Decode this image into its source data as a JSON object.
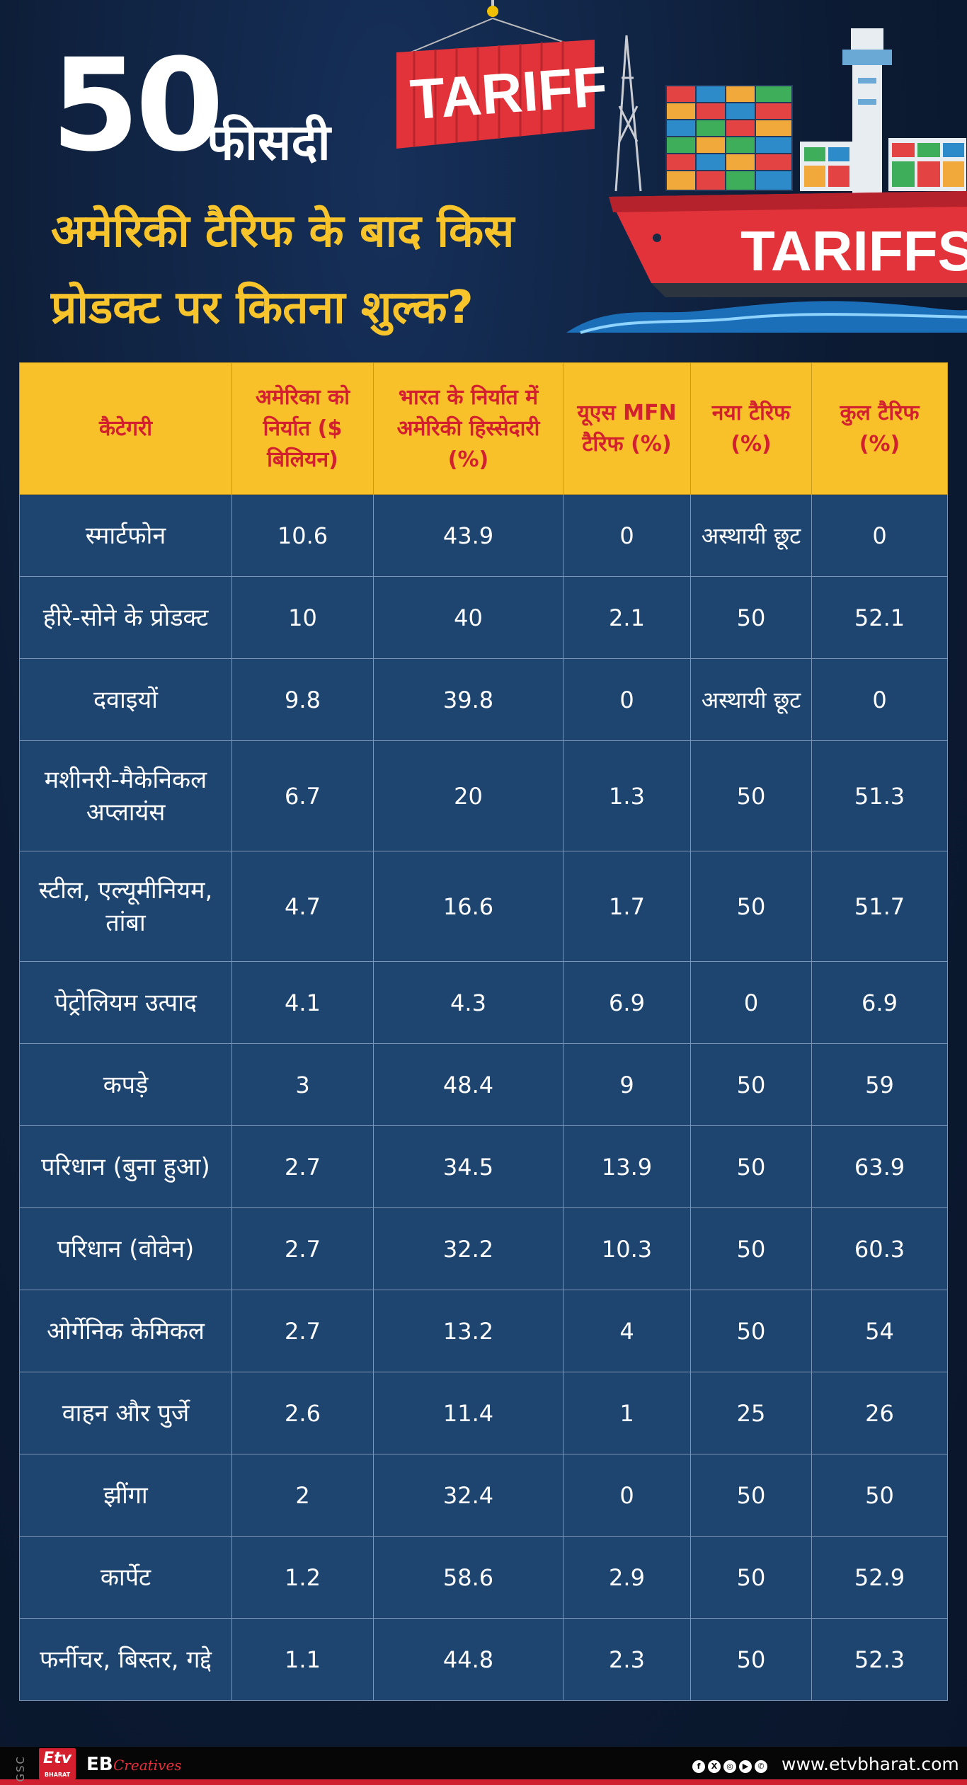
{
  "header": {
    "number": "50",
    "number_suffix": "फीसदी",
    "subtitle_line1": "अमेरिकी टैरिफ के बाद किस",
    "subtitle_line2": "प्रोडक्ट पर कितना शुल्क?",
    "container_label": "TARIFF",
    "ship_label": "TARIFFS"
  },
  "table": {
    "headers": [
      "कैटेगरी",
      "अमेरिका को निर्यात ($ बिलियन)",
      "भारत के निर्यात में अमेरिकी हिस्सेदारी (%)",
      "यूएस MFN टैरिफ (%)",
      "नया टैरिफ (%)",
      "कुल टैरिफ (%)"
    ],
    "rows": [
      [
        "स्मार्टफोन",
        "10.6",
        "43.9",
        "0",
        "अस्थायी छूट",
        "0"
      ],
      [
        "हीरे-सोने के प्रोडक्ट",
        "10",
        "40",
        "2.1",
        "50",
        "52.1"
      ],
      [
        "दवाइयों",
        "9.8",
        "39.8",
        "0",
        "अस्थायी छूट",
        "0"
      ],
      [
        "मशीनरी-मैकेनिकल अप्लायंस",
        "6.7",
        "20",
        "1.3",
        "50",
        "51.3"
      ],
      [
        "स्टील, एल्यूमीनियम, तांबा",
        "4.7",
        "16.6",
        "1.7",
        "50",
        "51.7"
      ],
      [
        "पेट्रोलियम उत्पाद",
        "4.1",
        "4.3",
        "6.9",
        "0",
        "6.9"
      ],
      [
        "कपड़े",
        "3",
        "48.4",
        "9",
        "50",
        "59"
      ],
      [
        "परिधान (बुना हुआ)",
        "2.7",
        "34.5",
        "13.9",
        "50",
        "63.9"
      ],
      [
        "परिधान (वोवेन)",
        "2.7",
        "32.2",
        "10.3",
        "50",
        "60.3"
      ],
      [
        "ओर्गेनिक केमिकल",
        "2.7",
        "13.2",
        "4",
        "50",
        "54"
      ],
      [
        "वाहन और पुर्जे",
        "2.6",
        "11.4",
        "1",
        "25",
        "26"
      ],
      [
        "झींगा",
        "2",
        "32.4",
        "0",
        "50",
        "50"
      ],
      [
        "कार्पेट",
        "1.2",
        "58.6",
        "2.9",
        "50",
        "52.9"
      ],
      [
        "फर्नीचर, बिस्तर, गद्दे",
        "1.1",
        "44.8",
        "2.3",
        "50",
        "52.3"
      ]
    ]
  },
  "footer": {
    "side_text": "GSC",
    "logo_text": "Etv",
    "logo_sub": "BHARAT",
    "eb": "EB",
    "eb_script": "Creatives",
    "social_icons": [
      "facebook-icon",
      "x-icon",
      "instagram-icon",
      "youtube-icon",
      "whatsapp-icon"
    ],
    "website": "www.etvbharat.com"
  },
  "colors": {
    "background": "#0c1b33",
    "header_row": "#f8c12a",
    "header_text": "#d3202f",
    "cell_bg": "#1e4470",
    "title_yellow": "#f7c52b",
    "accent_red": "#d01f2f"
  }
}
